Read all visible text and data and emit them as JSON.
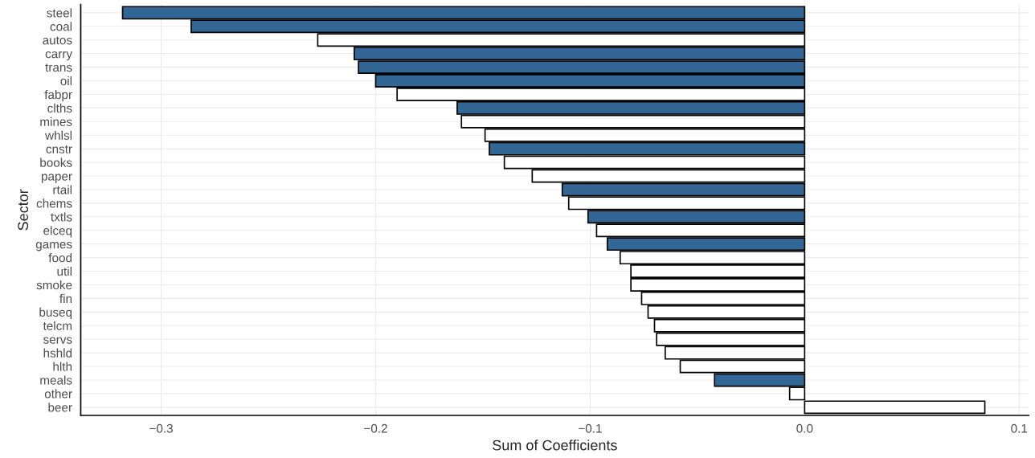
{
  "chart_data": {
    "type": "bar",
    "orientation": "horizontal",
    "xlabel": "Sum of Coefficients",
    "ylabel": "Sector",
    "categories": [
      "steel",
      "coal",
      "autos",
      "carry",
      "trans",
      "oil",
      "fabpr",
      "clths",
      "mines",
      "whlsl",
      "cnstr",
      "books",
      "paper",
      "rtail",
      "chems",
      "txtls",
      "elceq",
      "games",
      "food",
      "util",
      "smoke",
      "fin",
      "buseq",
      "telcm",
      "servs",
      "hshld",
      "hlth",
      "meals",
      "other",
      "beer"
    ],
    "values": [
      -0.318,
      -0.286,
      -0.227,
      -0.21,
      -0.208,
      -0.2,
      -0.19,
      -0.162,
      -0.16,
      -0.149,
      -0.147,
      -0.14,
      -0.127,
      -0.113,
      -0.11,
      -0.101,
      -0.097,
      -0.092,
      -0.086,
      -0.081,
      -0.081,
      -0.076,
      -0.073,
      -0.07,
      -0.069,
      -0.065,
      -0.058,
      -0.042,
      -0.007,
      0.084
    ],
    "colors": [
      "#336694",
      "#336694",
      "#ffffff",
      "#336694",
      "#336694",
      "#336694",
      "#ffffff",
      "#336694",
      "#ffffff",
      "#ffffff",
      "#336694",
      "#ffffff",
      "#ffffff",
      "#336694",
      "#ffffff",
      "#336694",
      "#ffffff",
      "#336694",
      "#ffffff",
      "#ffffff",
      "#ffffff",
      "#ffffff",
      "#ffffff",
      "#ffffff",
      "#ffffff",
      "#ffffff",
      "#ffffff",
      "#336694",
      "#ffffff",
      "#ffffff"
    ],
    "xlim": [
      -0.3375,
      0.1045
    ],
    "xticks": [
      {
        "value": -0.3,
        "label": "−0.3"
      },
      {
        "value": -0.2,
        "label": "−0.2"
      },
      {
        "value": -0.1,
        "label": "−0.1"
      },
      {
        "value": 0.0,
        "label": "0.0"
      },
      {
        "value": 0.1,
        "label": "0.1"
      }
    ],
    "grid": true,
    "legend": false
  }
}
